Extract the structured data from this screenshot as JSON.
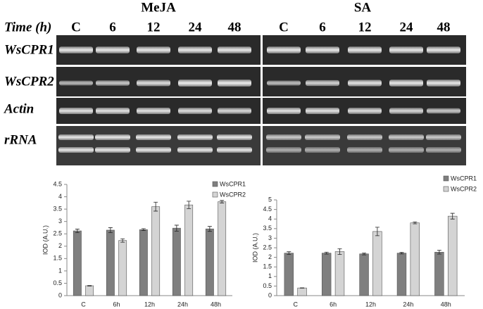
{
  "gel": {
    "time_label": "Time (h)",
    "panels": [
      {
        "title": "MeJA",
        "lanes": [
          "C",
          "6",
          "12",
          "24",
          "48"
        ]
      },
      {
        "title": "SA",
        "lanes": [
          "C",
          "6",
          "12",
          "24",
          "48"
        ]
      }
    ],
    "rows": [
      "WsCPR1",
      "WsCPR2",
      "Actin",
      "rRNA"
    ]
  },
  "chart_data": [
    {
      "type": "bar",
      "ylabel": "IOD (A.U.)",
      "categories": [
        "C",
        "6h",
        "12h",
        "24h",
        "48h"
      ],
      "series": [
        {
          "name": "WsCPR1",
          "color": "#7f7f7f",
          "values": [
            2.62,
            2.65,
            2.67,
            2.73,
            2.7
          ],
          "errors": [
            0.07,
            0.1,
            0.04,
            0.12,
            0.1
          ]
        },
        {
          "name": "WsCPR2",
          "color": "#d4d4d4",
          "values": [
            0.4,
            2.23,
            3.6,
            3.67,
            3.8
          ],
          "errors": [
            0.01,
            0.07,
            0.18,
            0.15,
            0.05
          ]
        }
      ],
      "ylim": [
        0,
        4.5
      ],
      "yticks": [
        0,
        0.5,
        1,
        1.5,
        2,
        2.5,
        3,
        3.5,
        4,
        4.5
      ],
      "legend": "upper right"
    },
    {
      "type": "bar",
      "ylabel": "IOD (A.U.)",
      "categories": [
        "C",
        "6h",
        "12h",
        "24h",
        "48h"
      ],
      "series": [
        {
          "name": "WsCPR1",
          "color": "#7f7f7f",
          "values": [
            2.22,
            2.22,
            2.18,
            2.22,
            2.27
          ],
          "errors": [
            0.07,
            0.05,
            0.05,
            0.04,
            0.1
          ]
        },
        {
          "name": "WsCPR2",
          "color": "#d4d4d4",
          "values": [
            0.4,
            2.3,
            3.35,
            3.8,
            4.15
          ],
          "errors": [
            0.01,
            0.15,
            0.22,
            0.05,
            0.15
          ]
        }
      ],
      "ylim": [
        0,
        5
      ],
      "yticks": [
        0,
        0.5,
        1,
        1.5,
        2,
        2.5,
        3,
        3.5,
        4,
        4.5,
        5
      ],
      "legend": "upper right"
    }
  ]
}
